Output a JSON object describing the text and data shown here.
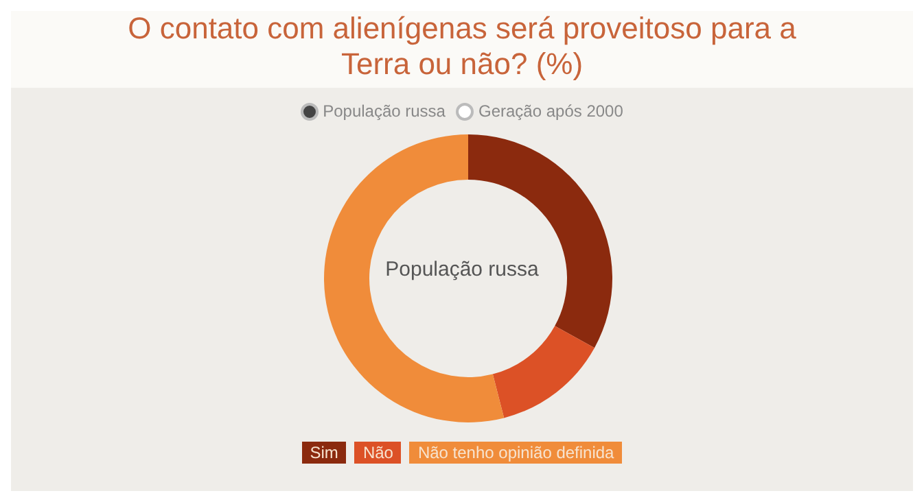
{
  "chart_data": {
    "type": "donut",
    "title": "O contato com alienígenas será proveitoso para a Terra ou não? (%)",
    "subtitle": "População russa",
    "annotations": [
      "População russa",
      "Geração após 2000"
    ],
    "categories": [
      "Sim",
      "Não",
      "Não tenho opinião definida"
    ],
    "values": [
      33,
      13,
      54
    ],
    "colors": [
      "#8b2a0e",
      "#dc5126",
      "#f08c3a"
    ],
    "legend": "bottom"
  }
}
